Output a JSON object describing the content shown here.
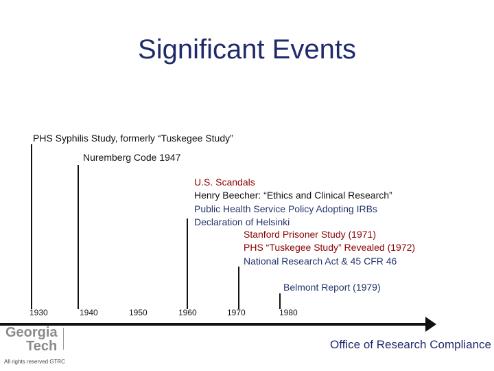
{
  "title": "Significant Events",
  "events": {
    "phs_syphilis": "PHS Syphilis Study, formerly “Tuskegee Study”",
    "nuremberg": "Nuremberg Code 1947",
    "us_scandals": "U.S. Scandals",
    "beecher": "Henry Beecher:  “Ethics and Clinical Research”",
    "phs_policy": "Public Health Service Policy Adopting IRBs",
    "helsinki": "Declaration of Helsinki",
    "stanford": "Stanford Prisoner Study (1971)",
    "tuskegee_revealed": "PHS “Tuskegee Study” Revealed (1972)",
    "national_research_act": "National Research Act & 45 CFR 46",
    "belmont": "Belmont Report (1979)"
  },
  "timeline": {
    "years": [
      "1930",
      "1940",
      "1950",
      "1960",
      "1970",
      "1980"
    ]
  },
  "footer": {
    "logo_line1": "Georgia",
    "logo_line2": "Tech",
    "office": "Office of Research Compliance",
    "copyright": "All rights reserved GTRC"
  },
  "colors": {
    "title": "#1f2a6b",
    "red_text": "#8b0000",
    "navy_text": "#23346b",
    "axis": "#111111"
  }
}
